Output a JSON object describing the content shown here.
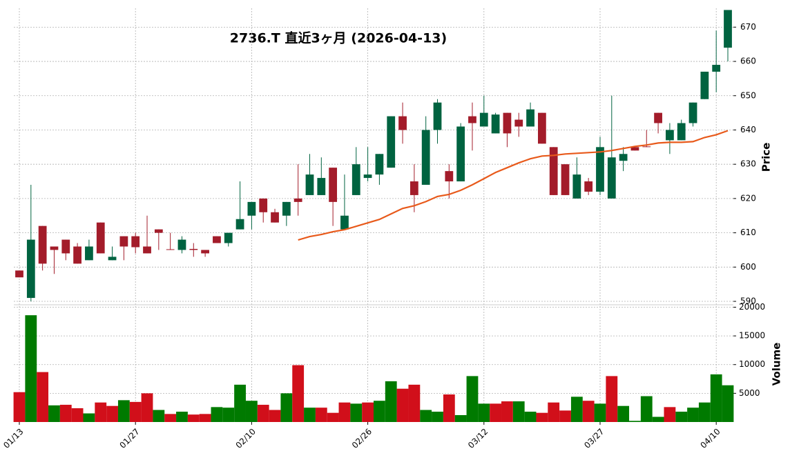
{
  "chart_data": {
    "type": "candlestick",
    "title": "2736.T  直近3ヶ月  (2026-04-13)",
    "categories": [
      "01/13",
      null,
      null,
      null,
      null,
      null,
      null,
      null,
      null,
      null,
      "01/27",
      null,
      null,
      null,
      null,
      null,
      null,
      null,
      null,
      null,
      "02/10",
      null,
      null,
      null,
      null,
      null,
      null,
      null,
      null,
      null,
      "02/26",
      null,
      null,
      null,
      null,
      null,
      null,
      null,
      null,
      null,
      "03/12",
      null,
      null,
      null,
      null,
      null,
      null,
      null,
      null,
      null,
      "03/27",
      null,
      null,
      null,
      null,
      null,
      null,
      null,
      null,
      null,
      "04/10",
      null
    ],
    "open": [
      599,
      591,
      612,
      606,
      608,
      606,
      602,
      613,
      602,
      609,
      609,
      606,
      611,
      605.2,
      605,
      605.3,
      605,
      609,
      607,
      611,
      615,
      620,
      616,
      615,
      620,
      621,
      621,
      629,
      611,
      621,
      626,
      627,
      629,
      644,
      625,
      624,
      640,
      628,
      625,
      644,
      641,
      639,
      645,
      643,
      641,
      645,
      635,
      630,
      620,
      625,
      622,
      620,
      631,
      635,
      635.2,
      645,
      637,
      637,
      642,
      649,
      657,
      664
    ],
    "high": [
      599,
      624,
      612,
      606,
      608,
      607,
      608,
      613,
      606,
      609,
      610,
      615,
      611,
      610,
      609,
      607,
      605,
      609,
      610,
      625,
      619,
      620,
      617,
      619,
      630,
      633,
      632,
      629,
      627,
      635,
      635,
      633,
      644,
      648,
      630,
      644,
      649,
      630,
      642,
      648,
      650,
      645,
      645,
      645,
      648,
      645,
      635,
      630,
      632,
      626,
      638,
      650,
      635,
      635,
      640,
      645,
      642,
      643,
      648,
      657,
      669,
      675
    ],
    "low": [
      597,
      590,
      599,
      598,
      602,
      601,
      602,
      604,
      602,
      602,
      604,
      604,
      605,
      605,
      604,
      603,
      603,
      607,
      606,
      611,
      611,
      613,
      613,
      612,
      615,
      621,
      621,
      612,
      611,
      621,
      625,
      624,
      629,
      636,
      616,
      624,
      636,
      620,
      625,
      634,
      641,
      639,
      635,
      638,
      641,
      636,
      621,
      621,
      620,
      621,
      621,
      620,
      628,
      634,
      635,
      639,
      633,
      637,
      641,
      649,
      651,
      660
    ],
    "close": [
      597,
      608,
      601,
      605,
      604,
      601,
      606,
      604,
      603,
      606,
      605.8,
      604,
      610,
      605,
      608,
      605,
      604,
      607,
      610,
      614,
      619,
      616,
      613,
      619,
      619,
      627,
      626,
      619,
      615,
      630,
      627,
      633,
      644,
      640,
      621,
      640,
      648,
      625,
      641,
      642,
      645,
      644.5,
      639,
      641,
      646,
      636,
      621,
      621,
      627,
      622,
      635,
      632,
      633,
      634,
      635,
      642,
      640,
      642,
      648,
      657,
      659,
      675
    ],
    "volume": [
      5200,
      18600,
      8700,
      2900,
      3000,
      2400,
      1500,
      3400,
      2800,
      3800,
      3500,
      5000,
      2100,
      1400,
      1800,
      1300,
      1400,
      2600,
      2500,
      6500,
      3700,
      3000,
      2100,
      5000,
      9900,
      2500,
      2500,
      1600,
      3400,
      3200,
      3400,
      3700,
      7100,
      5800,
      6500,
      2100,
      1800,
      4800,
      1200,
      8000,
      3200,
      3200,
      3600,
      3600,
      1800,
      1600,
      3400,
      2000,
      4400,
      3700,
      3200,
      8000,
      2800,
      200,
      4500,
      900,
      2600,
      1800,
      2500,
      3400,
      8300,
      6400
    ],
    "ma": [
      null,
      null,
      null,
      null,
      null,
      null,
      null,
      null,
      null,
      null,
      null,
      null,
      null,
      null,
      null,
      null,
      null,
      null,
      null,
      null,
      null,
      null,
      null,
      null,
      607.9,
      608.9,
      609.5,
      610.3,
      610.9,
      611.9,
      612.9,
      613.9,
      615.5,
      617.1,
      617.9,
      619.1,
      620.6,
      621.2,
      622.4,
      624,
      625.8,
      627.6,
      629,
      630.4,
      631.6,
      632.4,
      632.6,
      633,
      633.2,
      633.4,
      633.6,
      634,
      634.6,
      635.2,
      635.6,
      636.2,
      636.4,
      636.4,
      636.6,
      637.8,
      638.6,
      639.8
    ],
    "up_color": "#006340",
    "down_color": "#a31c2a",
    "volume_up_color": "#007a00",
    "volume_down_color": "#d10f1a",
    "ma_color": "#e8591a",
    "ylim": [
      589,
      675.5
    ],
    "yticks": [
      590,
      600,
      610,
      620,
      630,
      640,
      650,
      660,
      670
    ],
    "ylabel": "Price",
    "volume_ylim": [
      0,
      20300
    ],
    "volume_yticks": [
      5000,
      10000,
      15000,
      20000
    ],
    "volume_label": "Volume",
    "grid": true
  }
}
